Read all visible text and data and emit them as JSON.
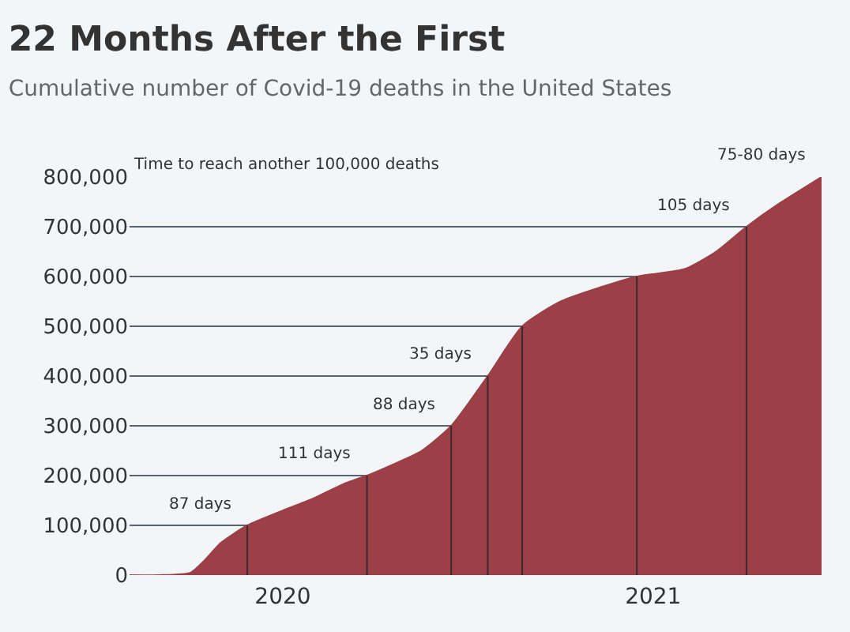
{
  "chart_data": {
    "type": "area",
    "title": "22 Months After the First",
    "subtitle": "Cumulative number of Covid-19 deaths in the United States",
    "x": [
      "2020-02-01",
      "2020-03-01",
      "2020-04-01",
      "2020-04-15",
      "2020-05-01",
      "2020-05-27",
      "2020-07-01",
      "2020-08-01",
      "2020-09-01",
      "2020-09-22",
      "2020-10-15",
      "2020-11-15",
      "2020-12-14",
      "2021-01-19",
      "2021-02-22",
      "2021-04-01",
      "2021-06-15",
      "2021-08-01",
      "2021-09-01",
      "2021-10-01",
      "2021-11-01",
      "2021-12-14"
    ],
    "series": [
      {
        "color": "#9b4046",
        "values": [
          0,
          0,
          5000,
          30000,
          65000,
          100000,
          130000,
          155000,
          185000,
          200000,
          220000,
          250000,
          300000,
          400000,
          500000,
          550000,
          600000,
          615000,
          650000,
          700000,
          745000,
          800000
        ]
      }
    ],
    "xlim": [
      "2020-02-01",
      "2021-12-14"
    ],
    "xticks": [
      {
        "value": "2020-07-01",
        "label": "2020"
      },
      {
        "value": "2021-07-01",
        "label": "2021"
      }
    ],
    "ylim": [
      0,
      800000
    ],
    "yticks": [
      {
        "value": 0,
        "label": "0"
      },
      {
        "value": 100000,
        "label": "100,000"
      },
      {
        "value": 200000,
        "label": "200,000"
      },
      {
        "value": 300000,
        "label": "300,000"
      },
      {
        "value": 400000,
        "label": "400,000"
      },
      {
        "value": 500000,
        "label": "500,000"
      },
      {
        "value": 600000,
        "label": "600,000"
      },
      {
        "value": 700000,
        "label": "700,000"
      },
      {
        "value": 800000,
        "label": "800,000"
      }
    ],
    "grid": "y",
    "legend": false,
    "ref_lines": [
      {
        "axis": "x",
        "value": "2020-05-27",
        "color": "#3a2a30"
      },
      {
        "axis": "x",
        "value": "2020-09-22",
        "color": "#3a2a30"
      },
      {
        "axis": "x",
        "value": "2020-12-14",
        "color": "#3a2a30"
      },
      {
        "axis": "x",
        "value": "2021-01-19",
        "color": "#3a2a30"
      },
      {
        "axis": "x",
        "value": "2021-02-22",
        "color": "#3a2a30"
      },
      {
        "axis": "x",
        "value": "2021-06-15",
        "color": "#3a2a30"
      },
      {
        "axis": "x",
        "value": "2021-10-01",
        "color": "#3a2a30"
      }
    ],
    "annotations": [
      "Time to reach another 100,000 deaths",
      {
        "text": "87 days",
        "x": "2020-05-27",
        "y": 100000
      },
      {
        "text": "111 days",
        "x": "2020-09-22",
        "y": 200000
      },
      {
        "text": "88 days",
        "x": "2020-12-14",
        "y": 300000
      },
      {
        "text": "35 days",
        "x": "2021-01-19",
        "y": 400000
      },
      {
        "text": "105 days",
        "x": "2021-10-01",
        "y": 700000
      },
      {
        "text": "75-80 days",
        "x": "2021-12-14",
        "y": 800000
      }
    ]
  }
}
